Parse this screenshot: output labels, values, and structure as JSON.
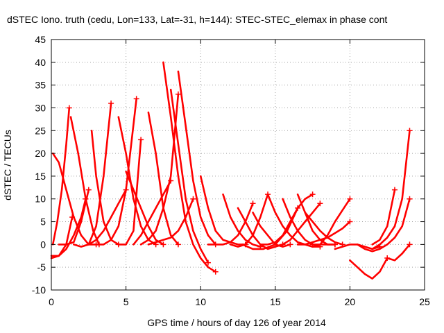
{
  "chart_data": {
    "type": "line",
    "title": "dSTEC Iono. truth (cedu, Lon=133, Lat=-31, h=144): STEC-STEC_elemax in phase cont",
    "xlabel": "GPS time / hours of day 126 of year 2014",
    "ylabel": "dSTEC  / TECUs",
    "xlim": [
      0,
      25
    ],
    "ylim": [
      -10,
      45
    ],
    "xticks": [
      "0",
      "5",
      "10",
      "15",
      "20",
      "25"
    ],
    "yticks": [
      "-10",
      "-5",
      "0",
      "5",
      "10",
      "15",
      "20",
      "25",
      "30",
      "35",
      "40",
      "45"
    ],
    "grid": true,
    "marker": "+",
    "series_color": "#ff0000",
    "series": [
      {
        "x": [
          0.1,
          0.5,
          1.0,
          1.5,
          2.0,
          2.5,
          3.0
        ],
        "y": [
          20,
          18,
          12,
          6,
          2,
          0,
          0
        ]
      },
      {
        "x": [
          0.1,
          0.4,
          0.7,
          1.0,
          1.2
        ],
        "y": [
          0,
          5,
          12,
          22,
          30
        ]
      },
      {
        "x": [
          0.0,
          0.5,
          1.0,
          1.4
        ],
        "y": [
          -3,
          -2.5,
          0,
          6
        ]
      },
      {
        "x": [
          1.3,
          1.8,
          2.3,
          2.8,
          3.2
        ],
        "y": [
          28,
          20,
          10,
          3,
          0
        ]
      },
      {
        "x": [
          0.0,
          0.5,
          1.0,
          1.5,
          2.0,
          2.3
        ],
        "y": [
          -2.5,
          -2.5,
          -1,
          2,
          6,
          10
        ]
      },
      {
        "x": [
          0.5,
          1.0,
          1.5,
          2.0,
          2.5
        ],
        "y": [
          0,
          0,
          0.5,
          5,
          12
        ]
      },
      {
        "x": [
          2.7,
          3.0,
          3.5,
          4.0,
          4.5
        ],
        "y": [
          25,
          15,
          5,
          1,
          0
        ]
      },
      {
        "x": [
          1.5,
          2.0,
          2.5,
          3.0,
          3.5,
          4.0
        ],
        "y": [
          0,
          -0.5,
          0,
          4,
          15,
          31
        ]
      },
      {
        "x": [
          4.5,
          5.0,
          5.5,
          6.0,
          6.5,
          7.0
        ],
        "y": [
          28,
          20,
          10,
          4,
          1,
          0
        ]
      },
      {
        "x": [
          3.0,
          3.5,
          4.0,
          4.5,
          5.0,
          5.7
        ],
        "y": [
          0,
          0,
          1,
          4,
          12,
          32
        ]
      },
      {
        "x": [
          2.5,
          3.0,
          3.5,
          4.0,
          4.5,
          5.0
        ],
        "y": [
          0,
          1,
          3,
          6,
          9,
          12
        ]
      },
      {
        "x": [
          5.0,
          5.5,
          6.0,
          6.5,
          7.0,
          7.5
        ],
        "y": [
          16,
          12,
          8,
          4,
          1,
          0
        ]
      },
      {
        "x": [
          4.5,
          5.0,
          5.5,
          6.0
        ],
        "y": [
          0,
          0,
          3,
          23
        ]
      },
      {
        "x": [
          6.5,
          7.0,
          7.5,
          8.0,
          8.5
        ],
        "y": [
          29,
          20,
          8,
          2,
          0
        ]
      },
      {
        "x": [
          5.5,
          6.0,
          6.5,
          7.0,
          7.5,
          8.0
        ],
        "y": [
          0,
          2,
          5,
          8,
          11,
          14
        ]
      },
      {
        "x": [
          7.5,
          8.0,
          8.5,
          9.0,
          9.5,
          10.0,
          10.5,
          11.0
        ],
        "y": [
          40,
          28,
          15,
          5,
          0,
          -3,
          -5,
          -6
        ]
      },
      {
        "x": [
          6.0,
          6.5,
          7.0,
          7.5,
          8.0,
          8.5
        ],
        "y": [
          0,
          1,
          3,
          8,
          15,
          33
        ]
      },
      {
        "x": [
          8.0,
          8.5,
          9.0,
          9.5,
          10.0,
          10.5
        ],
        "y": [
          34,
          22,
          10,
          3,
          -1,
          -4
        ]
      },
      {
        "x": [
          8.5,
          9.0,
          9.5,
          10.0,
          10.5,
          11.0
        ],
        "y": [
          38,
          26,
          14,
          6,
          2,
          0
        ]
      },
      {
        "x": [
          6.5,
          7.0,
          7.5,
          8.0,
          8.5,
          9.0,
          9.5
        ],
        "y": [
          0,
          0.5,
          1,
          1.5,
          3,
          6,
          10
        ]
      },
      {
        "x": [
          10.0,
          10.5,
          11.0,
          11.5,
          12.0,
          12.5,
          13.0
        ],
        "y": [
          15,
          8,
          3,
          1,
          0.5,
          0,
          0
        ]
      },
      {
        "x": [
          11.5,
          12.0,
          12.5,
          13.0,
          13.5,
          14.0
        ],
        "y": [
          11,
          6,
          3,
          1,
          0,
          -0.5
        ]
      },
      {
        "x": [
          10.5,
          11.0,
          11.5,
          12.0,
          12.5,
          13.0,
          13.5
        ],
        "y": [
          0,
          0,
          0,
          0.5,
          2,
          5,
          9
        ]
      },
      {
        "x": [
          12.5,
          13.0,
          13.5,
          14.0,
          14.5,
          15.0,
          15.5
        ],
        "y": [
          8,
          5,
          2,
          0,
          -1,
          -0.5,
          0
        ]
      },
      {
        "x": [
          12.0,
          12.5,
          13.0,
          13.5,
          14.0,
          14.5
        ],
        "y": [
          0,
          -0.5,
          0,
          2,
          6,
          11
        ]
      },
      {
        "x": [
          13.5,
          14.0,
          14.5,
          15.0,
          15.5,
          16.0
        ],
        "y": [
          7,
          4,
          2,
          0,
          -0.5,
          0
        ]
      },
      {
        "x": [
          12.8,
          13.5,
          14.2,
          15.0,
          15.8,
          16.5
        ],
        "y": [
          0,
          -1,
          -1,
          0,
          3,
          8
        ]
      },
      {
        "x": [
          14.0,
          14.5,
          15.0,
          15.5,
          16.0,
          16.5,
          17.0,
          17.5
        ],
        "y": [
          0,
          0,
          0.5,
          2,
          5,
          8,
          10,
          11
        ]
      },
      {
        "x": [
          15.5,
          16.0,
          16.5,
          17.0,
          17.5
        ],
        "y": [
          10,
          6,
          3,
          1,
          0
        ]
      },
      {
        "x": [
          14.5,
          15.0,
          15.5,
          16.0,
          16.5,
          17.0,
          17.5,
          18.0
        ],
        "y": [
          11,
          7,
          4,
          2,
          0.5,
          0,
          -0.5,
          -0.5
        ]
      },
      {
        "x": [
          16.5,
          17.0,
          17.5,
          18.0,
          18.5,
          19.0
        ],
        "y": [
          11,
          7,
          3,
          1,
          0,
          0
        ]
      },
      {
        "x": [
          15.5,
          16.0,
          16.5,
          17.0,
          17.5,
          18.0
        ],
        "y": [
          0,
          1,
          3,
          5,
          7,
          9
        ]
      },
      {
        "x": [
          17.0,
          17.5,
          18.0,
          18.5,
          19.0,
          19.5
        ],
        "y": [
          7,
          5,
          3,
          1.5,
          0.5,
          0
        ]
      },
      {
        "x": [
          17.0,
          17.5,
          18.0,
          18.5,
          19.0,
          19.5,
          20.0
        ],
        "y": [
          0,
          -0.5,
          0,
          2,
          5,
          7.5,
          10
        ]
      },
      {
        "x": [
          17.5,
          18.0,
          18.5,
          19.0
        ],
        "y": [
          0,
          0,
          0,
          0
        ]
      },
      {
        "x": [
          16.5,
          17.0,
          17.5,
          18.0,
          18.5,
          19.0,
          19.5,
          20.0
        ],
        "y": [
          0,
          0,
          0.5,
          1,
          1.5,
          2.5,
          3.5,
          5
        ]
      },
      {
        "x": [
          19.0,
          19.5,
          20.0,
          20.5,
          21.0,
          21.5,
          22.0
        ],
        "y": [
          -1,
          -0.5,
          0,
          0,
          -0.5,
          -1,
          -0.5
        ]
      },
      {
        "x": [
          20.0,
          20.5,
          21.0,
          21.5,
          22.0,
          22.5
        ],
        "y": [
          -3.5,
          -5,
          -6.5,
          -7.5,
          -6,
          -3
        ]
      },
      {
        "x": [
          21.5,
          22.0,
          22.5,
          23.0,
          23.5,
          24.0
        ],
        "y": [
          -1,
          0,
          1.5,
          4,
          10,
          25
        ]
      },
      {
        "x": [
          22.5,
          23.0,
          23.5,
          24.0
        ],
        "y": [
          -3,
          -3.5,
          -2,
          0
        ]
      },
      {
        "x": [
          20.5,
          21.0,
          21.5,
          22.0,
          22.5,
          23.0,
          23.5,
          24.0
        ],
        "y": [
          0,
          -1,
          -1.5,
          -1,
          0,
          1.5,
          4,
          10
        ]
      },
      {
        "x": [
          21.5,
          22.0,
          22.5,
          23.0
        ],
        "y": [
          0,
          1,
          4,
          12
        ]
      }
    ]
  }
}
